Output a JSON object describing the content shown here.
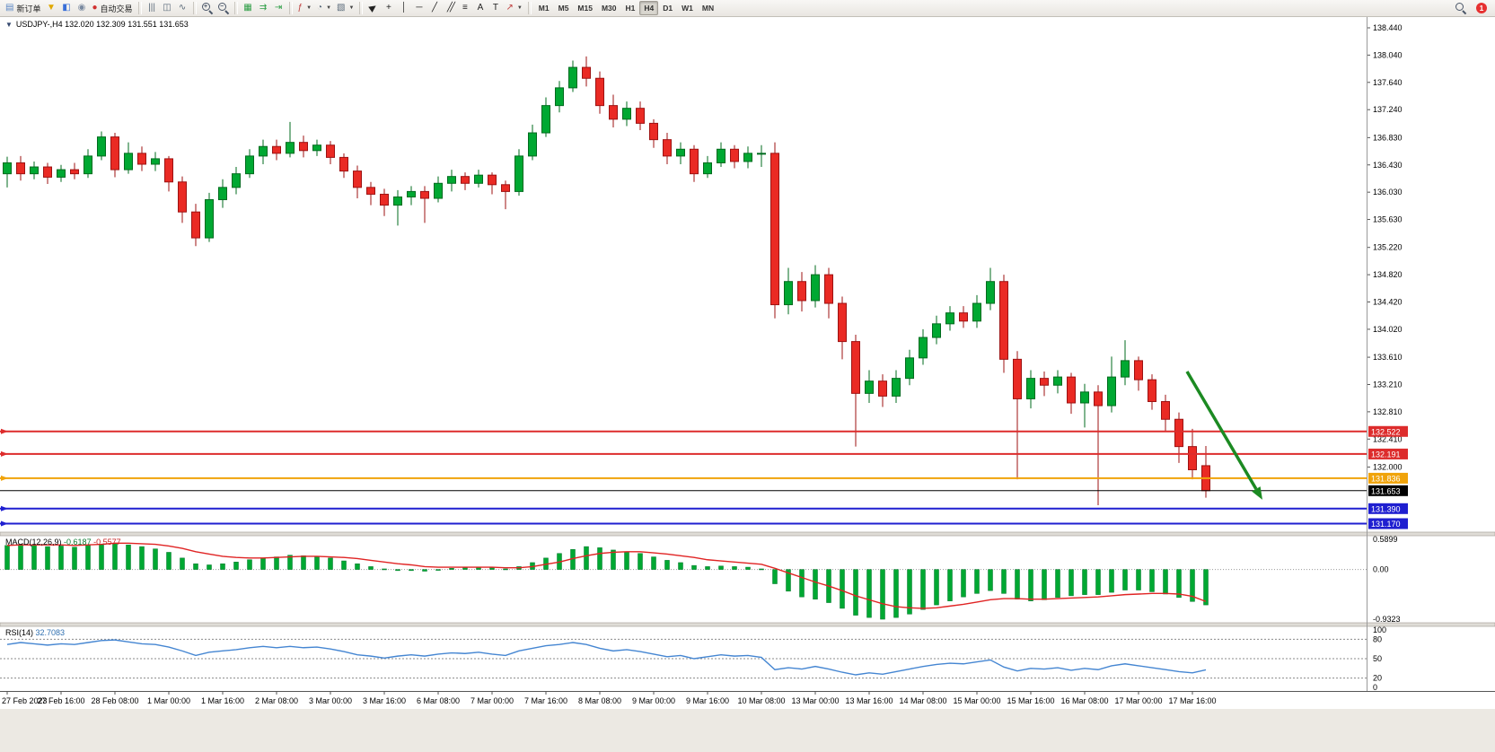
{
  "toolbar": {
    "groups": [
      {
        "items": [
          {
            "name": "new-order-button",
            "icon": "new-order",
            "label": "新订单"
          },
          {
            "name": "profiles-button",
            "icon": "profiles"
          },
          {
            "name": "new-chart-button",
            "icon": "new-chart"
          },
          {
            "name": "data-window-button",
            "icon": "data-window"
          },
          {
            "name": "autotrading-button",
            "icon": "autotrading",
            "label": "自动交易"
          }
        ]
      },
      {
        "items": [
          {
            "name": "bar-chart-button",
            "icon": "bar-chart"
          },
          {
            "name": "candlestick-chart-button",
            "icon": "candlestick"
          },
          {
            "name": "line-chart-button",
            "icon": "line-chart"
          }
        ]
      },
      {
        "items": [
          {
            "name": "zoom-in-button",
            "icon": "zoom-in"
          },
          {
            "name": "zoom-out-button",
            "icon": "zoom-out"
          }
        ]
      },
      {
        "items": [
          {
            "name": "tile-windows-button",
            "icon": "tile-windows"
          },
          {
            "name": "auto-scroll-button",
            "icon": "auto-scroll"
          },
          {
            "name": "chart-shift-button",
            "icon": "chart-shift"
          }
        ]
      },
      {
        "items": [
          {
            "name": "indicators-button",
            "icon": "indicators",
            "dropdown": true
          },
          {
            "name": "periods-button",
            "icon": "periods",
            "dropdown": true
          },
          {
            "name": "templates-button",
            "icon": "templates",
            "dropdown": true
          }
        ]
      },
      {
        "items": [
          {
            "name": "cursor-button",
            "icon": "cursor"
          },
          {
            "name": "crosshair-button",
            "icon": "crosshair"
          },
          {
            "name": "vertical-line-button",
            "icon": "vertical-line"
          },
          {
            "name": "horizontal-line-button",
            "icon": "horizontal-line"
          },
          {
            "name": "trendline-button",
            "icon": "trendline"
          },
          {
            "name": "channel-button",
            "icon": "channel"
          },
          {
            "name": "fibonacci-button",
            "icon": "fibonacci"
          },
          {
            "name": "text-button",
            "icon": "text"
          },
          {
            "name": "label-button",
            "icon": "label"
          },
          {
            "name": "arrows-button",
            "icon": "arrows",
            "dropdown": true
          }
        ]
      }
    ],
    "timeframes": {
      "options": [
        "M1",
        "M5",
        "M15",
        "M30",
        "H1",
        "H4",
        "D1",
        "W1",
        "MN"
      ],
      "active": "H4"
    },
    "right": [
      {
        "name": "search-button",
        "icon": "search"
      },
      {
        "name": "notification-badge",
        "label": "1"
      }
    ]
  },
  "chart_header": {
    "collapse_icon": "▼",
    "symbol": "USDJPY-,H4",
    "ohlc": "132.020 132.309 131.551 131.653"
  },
  "chart_data": {
    "type": "candlestick-with-indicators",
    "symbol": "USDJPY-",
    "timeframe": "H4",
    "main": {
      "type": "candle",
      "ylim": [
        131.05,
        138.6
      ],
      "axis_labels": [
        "138.440",
        "138.040",
        "137.640",
        "137.240",
        "136.830",
        "136.430",
        "136.030",
        "135.630",
        "135.220",
        "134.820",
        "134.420",
        "134.020",
        "133.610",
        "133.210",
        "132.810",
        "132.410",
        "132.000"
      ],
      "candles": [
        [
          136.3,
          136.55,
          136.1,
          136.46
        ],
        [
          136.46,
          136.56,
          136.2,
          136.3
        ],
        [
          136.3,
          136.48,
          136.22,
          136.4
        ],
        [
          136.4,
          136.46,
          136.15,
          136.25
        ],
        [
          136.25,
          136.43,
          136.18,
          136.36
        ],
        [
          136.36,
          136.46,
          136.22,
          136.3
        ],
        [
          136.3,
          136.66,
          136.24,
          136.56
        ],
        [
          136.56,
          136.92,
          136.5,
          136.84
        ],
        [
          136.84,
          136.9,
          136.25,
          136.36
        ],
        [
          136.36,
          136.76,
          136.3,
          136.6
        ],
        [
          136.6,
          136.7,
          136.34,
          136.44
        ],
        [
          136.44,
          136.62,
          136.34,
          136.52
        ],
        [
          136.52,
          136.56,
          136.04,
          136.18
        ],
        [
          136.18,
          136.26,
          135.58,
          135.74
        ],
        [
          135.74,
          135.86,
          135.24,
          135.36
        ],
        [
          135.36,
          136.02,
          135.3,
          135.92
        ],
        [
          135.92,
          136.22,
          135.8,
          136.1
        ],
        [
          136.1,
          136.4,
          136.0,
          136.3
        ],
        [
          136.3,
          136.66,
          136.24,
          136.56
        ],
        [
          136.56,
          136.8,
          136.44,
          136.7
        ],
        [
          136.7,
          136.8,
          136.5,
          136.6
        ],
        [
          136.6,
          137.06,
          136.54,
          136.76
        ],
        [
          136.76,
          136.86,
          136.54,
          136.64
        ],
        [
          136.64,
          136.8,
          136.56,
          136.72
        ],
        [
          136.72,
          136.78,
          136.44,
          136.54
        ],
        [
          136.54,
          136.6,
          136.24,
          136.34
        ],
        [
          136.34,
          136.42,
          135.94,
          136.1
        ],
        [
          136.1,
          136.18,
          135.84,
          136.0
        ],
        [
          136.0,
          136.08,
          135.68,
          135.84
        ],
        [
          135.84,
          136.06,
          135.54,
          135.96
        ],
        [
          135.96,
          136.12,
          135.84,
          136.04
        ],
        [
          136.04,
          136.12,
          135.58,
          135.94
        ],
        [
          135.94,
          136.26,
          135.88,
          136.16
        ],
        [
          136.16,
          136.36,
          136.04,
          136.26
        ],
        [
          136.26,
          136.32,
          136.06,
          136.16
        ],
        [
          136.16,
          136.36,
          136.1,
          136.28
        ],
        [
          136.28,
          136.32,
          136.0,
          136.14
        ],
        [
          136.14,
          136.2,
          135.78,
          136.04
        ],
        [
          136.04,
          136.66,
          135.98,
          136.56
        ],
        [
          136.56,
          137.02,
          136.5,
          136.9
        ],
        [
          136.9,
          137.42,
          136.84,
          137.3
        ],
        [
          137.3,
          137.66,
          137.2,
          137.56
        ],
        [
          137.56,
          137.96,
          137.5,
          137.86
        ],
        [
          137.86,
          138.02,
          137.58,
          137.7
        ],
        [
          137.7,
          137.8,
          137.18,
          137.3
        ],
        [
          137.3,
          137.46,
          136.98,
          137.1
        ],
        [
          137.1,
          137.36,
          137.0,
          137.26
        ],
        [
          137.26,
          137.36,
          136.94,
          137.04
        ],
        [
          137.04,
          137.1,
          136.68,
          136.8
        ],
        [
          136.8,
          136.9,
          136.44,
          136.56
        ],
        [
          136.56,
          136.76,
          136.44,
          136.66
        ],
        [
          136.66,
          136.72,
          136.18,
          136.3
        ],
        [
          136.3,
          136.56,
          136.24,
          136.46
        ],
        [
          136.46,
          136.76,
          136.4,
          136.66
        ],
        [
          136.66,
          136.72,
          136.38,
          136.48
        ],
        [
          136.48,
          136.7,
          136.38,
          136.6
        ],
        [
          136.6,
          136.72,
          136.4,
          136.6
        ],
        [
          136.6,
          136.76,
          134.18,
          134.38
        ],
        [
          134.38,
          134.92,
          134.24,
          134.72
        ],
        [
          134.72,
          134.86,
          134.28,
          134.44
        ],
        [
          134.44,
          134.96,
          134.34,
          134.82
        ],
        [
          134.82,
          134.92,
          134.18,
          134.4
        ],
        [
          134.4,
          134.5,
          133.58,
          133.84
        ],
        [
          133.84,
          133.94,
          132.3,
          133.08
        ],
        [
          133.08,
          133.42,
          132.94,
          133.26
        ],
        [
          133.26,
          133.36,
          132.88,
          133.04
        ],
        [
          133.04,
          133.42,
          132.94,
          133.3
        ],
        [
          133.3,
          133.72,
          133.2,
          133.6
        ],
        [
          133.6,
          134.02,
          133.5,
          133.9
        ],
        [
          133.9,
          134.22,
          133.8,
          134.1
        ],
        [
          134.1,
          134.36,
          134.0,
          134.26
        ],
        [
          134.26,
          134.36,
          134.04,
          134.14
        ],
        [
          134.14,
          134.52,
          134.04,
          134.4
        ],
        [
          134.4,
          134.92,
          134.3,
          134.72
        ],
        [
          134.72,
          134.82,
          133.38,
          133.58
        ],
        [
          133.58,
          133.7,
          131.82,
          133.0
        ],
        [
          133.0,
          133.42,
          132.86,
          133.3
        ],
        [
          133.3,
          133.4,
          133.04,
          133.2
        ],
        [
          133.2,
          133.42,
          133.08,
          133.32
        ],
        [
          133.32,
          133.38,
          132.78,
          132.94
        ],
        [
          132.94,
          133.22,
          132.58,
          133.1
        ],
        [
          133.1,
          133.2,
          131.44,
          132.9
        ],
        [
          132.9,
          133.62,
          132.8,
          133.32
        ],
        [
          133.32,
          133.86,
          133.2,
          133.56
        ],
        [
          133.56,
          133.62,
          133.12,
          133.28
        ],
        [
          133.28,
          133.36,
          132.84,
          132.96
        ],
        [
          132.96,
          133.06,
          132.52,
          132.7
        ],
        [
          132.7,
          132.8,
          132.06,
          132.3
        ],
        [
          132.3,
          132.56,
          131.82,
          131.96
        ],
        [
          132.02,
          132.309,
          131.551,
          131.653
        ]
      ],
      "hlines": [
        {
          "price": 132.522,
          "tag": "132.522",
          "color": "#dd2c2c",
          "width": 2
        },
        {
          "price": 132.191,
          "tag": "132.191",
          "color": "#dd2c2c",
          "width": 2
        },
        {
          "price": 131.836,
          "tag": "131.836",
          "color": "#f0a30a",
          "width": 2
        },
        {
          "price": 131.39,
          "tag": "131.390",
          "color": "#1f1fd0",
          "width": 2
        },
        {
          "price": 131.17,
          "tag": "131.170",
          "color": "#1f1fd0",
          "width": 2
        }
      ],
      "current_price": {
        "price": 131.653,
        "tag": "131.653",
        "color": "#000000"
      },
      "arrow": {
        "from_bar": 87.6,
        "from_price": 133.4,
        "to_bar": 93.2,
        "to_price": 131.52,
        "color": "#1c8a22"
      }
    },
    "macd": {
      "label": "MACD(12,26,9)",
      "value_text": "-0.6187",
      "signal_text": "-0.5577",
      "axis_labels": [
        "0.5899",
        "0.00",
        "-0.9323"
      ],
      "scale_max": 0.5899,
      "scale_min": -0.9323,
      "histogram": [
        0.42,
        0.44,
        0.42,
        0.4,
        0.41,
        0.39,
        0.42,
        0.44,
        0.46,
        0.43,
        0.4,
        0.36,
        0.3,
        0.2,
        0.1,
        0.08,
        0.1,
        0.13,
        0.17,
        0.2,
        0.22,
        0.25,
        0.24,
        0.23,
        0.2,
        0.15,
        0.1,
        0.05,
        0.01,
        -0.02,
        -0.02,
        -0.03,
        -0.01,
        0.02,
        0.03,
        0.04,
        0.03,
        0.01,
        0.05,
        0.12,
        0.2,
        0.28,
        0.35,
        0.4,
        0.38,
        0.34,
        0.31,
        0.28,
        0.22,
        0.16,
        0.12,
        0.07,
        0.05,
        0.06,
        0.05,
        0.04,
        0.01,
        -0.25,
        -0.38,
        -0.48,
        -0.52,
        -0.58,
        -0.68,
        -0.8,
        -0.84,
        -0.87,
        -0.84,
        -0.78,
        -0.7,
        -0.62,
        -0.55,
        -0.48,
        -0.42,
        -0.37,
        -0.42,
        -0.52,
        -0.55,
        -0.53,
        -0.49,
        -0.46,
        -0.44,
        -0.44,
        -0.4,
        -0.36,
        -0.36,
        -0.39,
        -0.43,
        -0.49,
        -0.56,
        -0.62
      ],
      "signal": [
        0.42,
        0.43,
        0.43,
        0.43,
        0.43,
        0.42,
        0.43,
        0.44,
        0.46,
        0.46,
        0.45,
        0.44,
        0.41,
        0.37,
        0.31,
        0.27,
        0.23,
        0.21,
        0.2,
        0.2,
        0.21,
        0.22,
        0.23,
        0.23,
        0.22,
        0.21,
        0.19,
        0.16,
        0.13,
        0.1,
        0.08,
        0.05,
        0.04,
        0.04,
        0.04,
        0.04,
        0.04,
        0.03,
        0.03,
        0.05,
        0.09,
        0.13,
        0.19,
        0.24,
        0.28,
        0.3,
        0.31,
        0.31,
        0.29,
        0.27,
        0.24,
        0.21,
        0.17,
        0.15,
        0.13,
        0.11,
        0.09,
        0.02,
        -0.06,
        -0.14,
        -0.22,
        -0.29,
        -0.37,
        -0.46,
        -0.53,
        -0.6,
        -0.65,
        -0.67,
        -0.68,
        -0.67,
        -0.64,
        -0.61,
        -0.57,
        -0.53,
        -0.51,
        -0.51,
        -0.52,
        -0.52,
        -0.51,
        -0.5,
        -0.49,
        -0.48,
        -0.46,
        -0.44,
        -0.43,
        -0.42,
        -0.42,
        -0.43,
        -0.47,
        -0.56
      ]
    },
    "rsi": {
      "label": "RSI(14)",
      "value_text": "32.7083",
      "axis_labels": [
        "100",
        "80",
        "50",
        "20",
        "0"
      ],
      "levels": [
        80,
        50,
        20
      ],
      "ylim": [
        0,
        100
      ],
      "values": [
        72,
        75,
        73,
        71,
        73,
        72,
        75,
        78,
        79,
        76,
        73,
        72,
        68,
        62,
        55,
        60,
        62,
        64,
        67,
        69,
        67,
        69,
        67,
        68,
        65,
        61,
        56,
        54,
        51,
        54,
        56,
        54,
        57,
        59,
        58,
        60,
        57,
        55,
        62,
        66,
        70,
        72,
        75,
        72,
        66,
        62,
        64,
        61,
        57,
        53,
        55,
        50,
        53,
        56,
        54,
        55,
        52,
        33,
        36,
        34,
        38,
        34,
        29,
        25,
        28,
        26,
        30,
        34,
        38,
        41,
        43,
        42,
        45,
        48,
        37,
        31,
        35,
        34,
        36,
        32,
        35,
        33,
        39,
        42,
        39,
        36,
        33,
        30,
        28,
        32.7
      ]
    },
    "time_labels": [
      {
        "text": "27 Feb 2023",
        "bar": 0
      },
      {
        "text": "27 Feb 16:00",
        "bar": 4
      },
      {
        "text": "28 Feb 08:00",
        "bar": 8
      },
      {
        "text": "1 Mar 00:00",
        "bar": 12
      },
      {
        "text": "1 Mar 16:00",
        "bar": 16
      },
      {
        "text": "2 Mar 08:00",
        "bar": 20
      },
      {
        "text": "3 Mar 00:00",
        "bar": 24
      },
      {
        "text": "3 Mar 16:00",
        "bar": 28
      },
      {
        "text": "6 Mar 08:00",
        "bar": 32
      },
      {
        "text": "7 Mar 00:00",
        "bar": 36
      },
      {
        "text": "7 Mar 16:00",
        "bar": 40
      },
      {
        "text": "8 Mar 08:00",
        "bar": 44
      },
      {
        "text": "9 Mar 00:00",
        "bar": 48
      },
      {
        "text": "9 Mar 16:00",
        "bar": 52
      },
      {
        "text": "10 Mar 08:00",
        "bar": 56
      },
      {
        "text": "13 Mar 00:00",
        "bar": 60
      },
      {
        "text": "13 Mar 16:00",
        "bar": 64
      },
      {
        "text": "14 Mar 08:00",
        "bar": 68
      },
      {
        "text": "15 Mar 00:00",
        "bar": 72
      },
      {
        "text": "15 Mar 16:00",
        "bar": 76
      },
      {
        "text": "16 Mar 08:00",
        "bar": 80
      },
      {
        "text": "17 Mar 00:00",
        "bar": 84
      },
      {
        "text": "17 Mar 16:00",
        "bar": 88
      }
    ]
  },
  "colors": {
    "bull": "#00a832",
    "bull_border": "#006b1e",
    "bear": "#ea2a24",
    "bear_border": "#9d1212",
    "macd_hist": "#00a832",
    "macd_signal": "#e02424",
    "rsi_line": "#4586d2",
    "axis_text": "#000000",
    "tag_text": "#ffffff",
    "panel_border": "#9a9a9a"
  }
}
